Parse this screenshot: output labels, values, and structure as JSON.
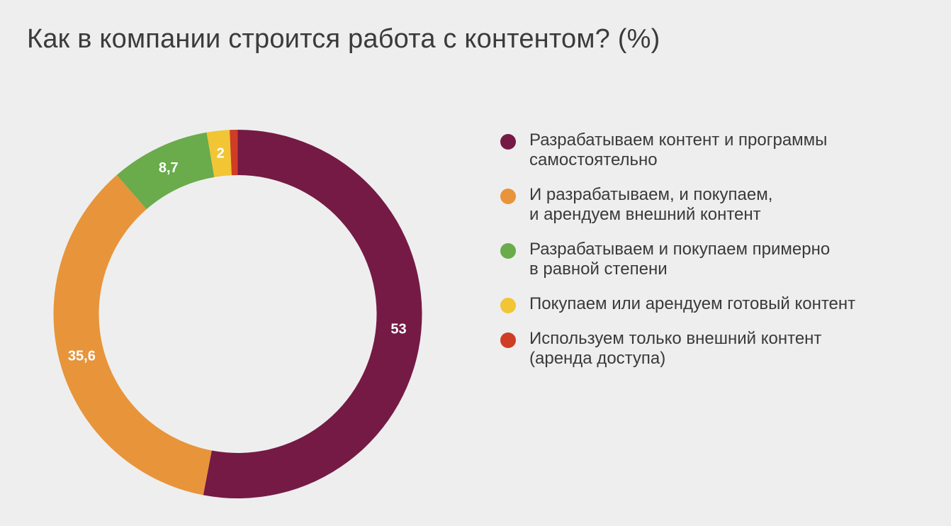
{
  "chart_data": {
    "type": "pie",
    "title": "Как в компании строится работа с контентом? (%)",
    "categories": [
      "Разрабатываем контент и программы самостоятельно",
      "И разрабатываем, и покупаем, и арендуем внешний контент",
      "Разрабатываем и покупаем примерно в равной степени",
      "Покупаем или арендуем готовый контент",
      "Используем только внешний контент (аренда доступа)"
    ],
    "values": [
      53,
      35.6,
      8.7,
      2,
      0.7
    ],
    "data_labels": [
      "53",
      "35,6",
      "8,7",
      "2",
      ""
    ],
    "colors": [
      "#751a45",
      "#e8943a",
      "#6aab4b",
      "#f1c534",
      "#cf3d24"
    ],
    "legend_position": "right",
    "donut": true
  },
  "legend": {
    "items": [
      {
        "lines": [
          "Разрабатываем контент и программы",
          "самостоятельно"
        ],
        "color": "#751a45"
      },
      {
        "lines": [
          "И разрабатываем, и покупаем,",
          "и арендуем внешний контент"
        ],
        "color": "#e8943a"
      },
      {
        "lines": [
          "Разрабатываем и покупаем примерно",
          "в равной степени"
        ],
        "color": "#6aab4b"
      },
      {
        "lines": [
          "Покупаем или арендуем готовый контент"
        ],
        "color": "#f1c534"
      },
      {
        "lines": [
          "Используем только внешний контент",
          "(аренда доступа)"
        ],
        "color": "#cf3d24"
      }
    ]
  }
}
